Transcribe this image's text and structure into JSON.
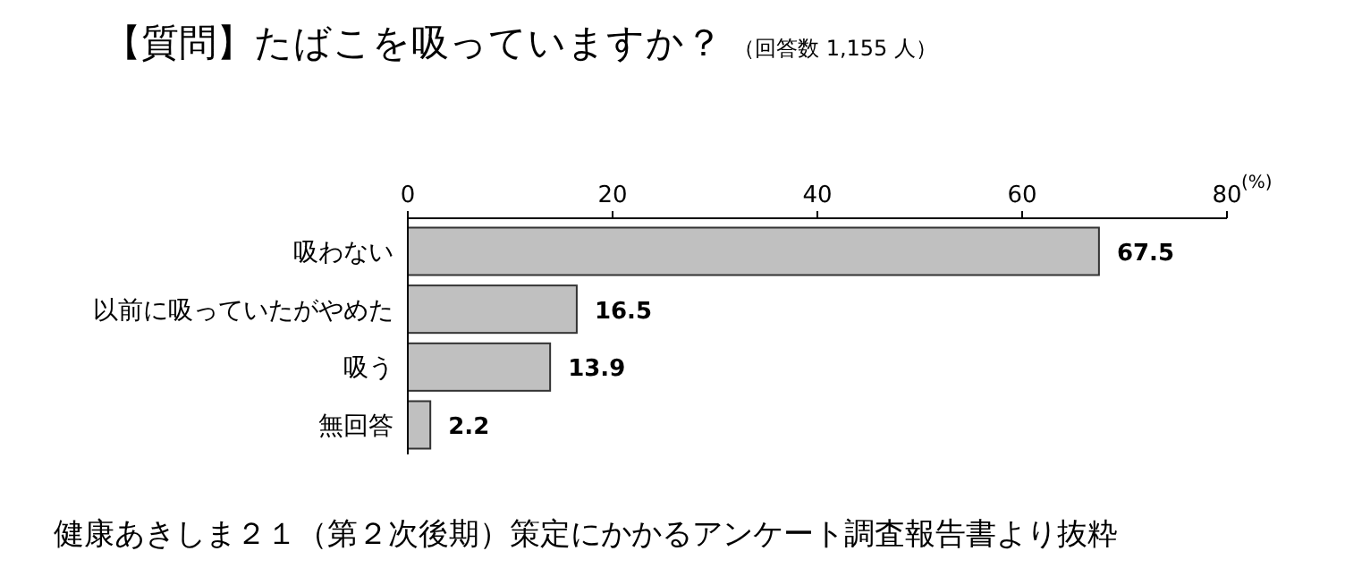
{
  "chart_data": {
    "type": "bar",
    "orientation": "horizontal",
    "title": "【質問】たばこを吸っていますか？",
    "subtitle": "（回答数 1,155 人）",
    "xlabel": "(%)",
    "categories": [
      "吸わない",
      "以前に吸っていたがやめた",
      "吸う",
      "無回答"
    ],
    "values": [
      67.5,
      16.5,
      13.9,
      2.2
    ],
    "color": "#c0c0c0",
    "xlim": [
      0,
      80
    ],
    "xticks": [
      0,
      20,
      40,
      60,
      80
    ],
    "data_labels": true,
    "annotations": [
      "健康あきしま２１（第２次後期）策定にかかるアンケート調査報告書より抜粋"
    ]
  }
}
